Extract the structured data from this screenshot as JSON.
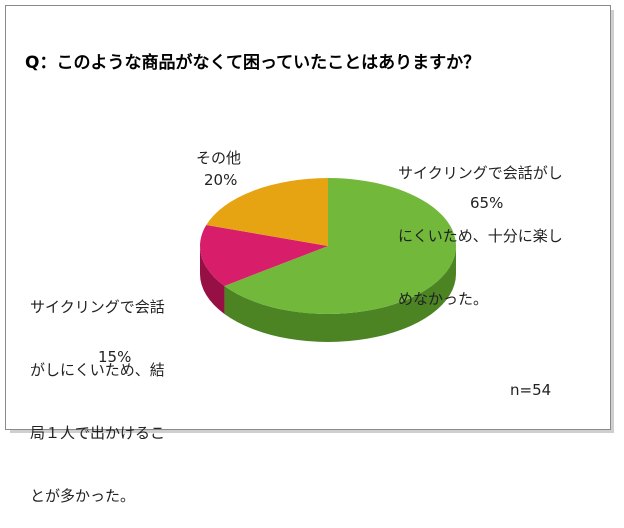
{
  "chart_data": {
    "type": "pie",
    "title": "Q：このような商品がなくて困っていたことはありますか？",
    "note": "n=54",
    "slices": [
      {
        "label": "サイクリングで会話がしにくいため、十分に楽しめなかった。",
        "label_lines": [
          "サイクリングで会話がし",
          "にくいため、十分に楽し",
          "めなかった。"
        ],
        "value": 65,
        "value_text": "65%",
        "color": "#72b83a",
        "side_color": "#4c8424"
      },
      {
        "label": "サイクリングで会話がしにくいため、結局１人で出かけることが多かった。",
        "label_lines": [
          "サイクリングで会話",
          "がしにくいため、結",
          "局１人で出かけるこ",
          "とが多かった。"
        ],
        "value": 15,
        "value_text": "15%",
        "color": "#d81e6a",
        "side_color": "#961045"
      },
      {
        "label": "その他",
        "label_lines": [
          "その他"
        ],
        "value": 20,
        "value_text": "20%",
        "color": "#e7a412",
        "side_color": "#a8740a"
      }
    ]
  }
}
